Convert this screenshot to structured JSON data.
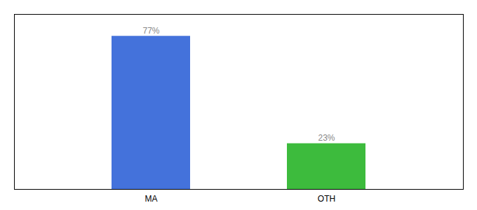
{
  "chart_data": {
    "type": "bar",
    "categories": [
      "MA",
      "OTH"
    ],
    "values": [
      77,
      23
    ],
    "value_labels": [
      "77%",
      "23%"
    ],
    "colors": [
      "#4472db",
      "#3dbb3d"
    ],
    "ylim": [
      0,
      88
    ],
    "data_labels": true,
    "tick_labels": "x"
  }
}
